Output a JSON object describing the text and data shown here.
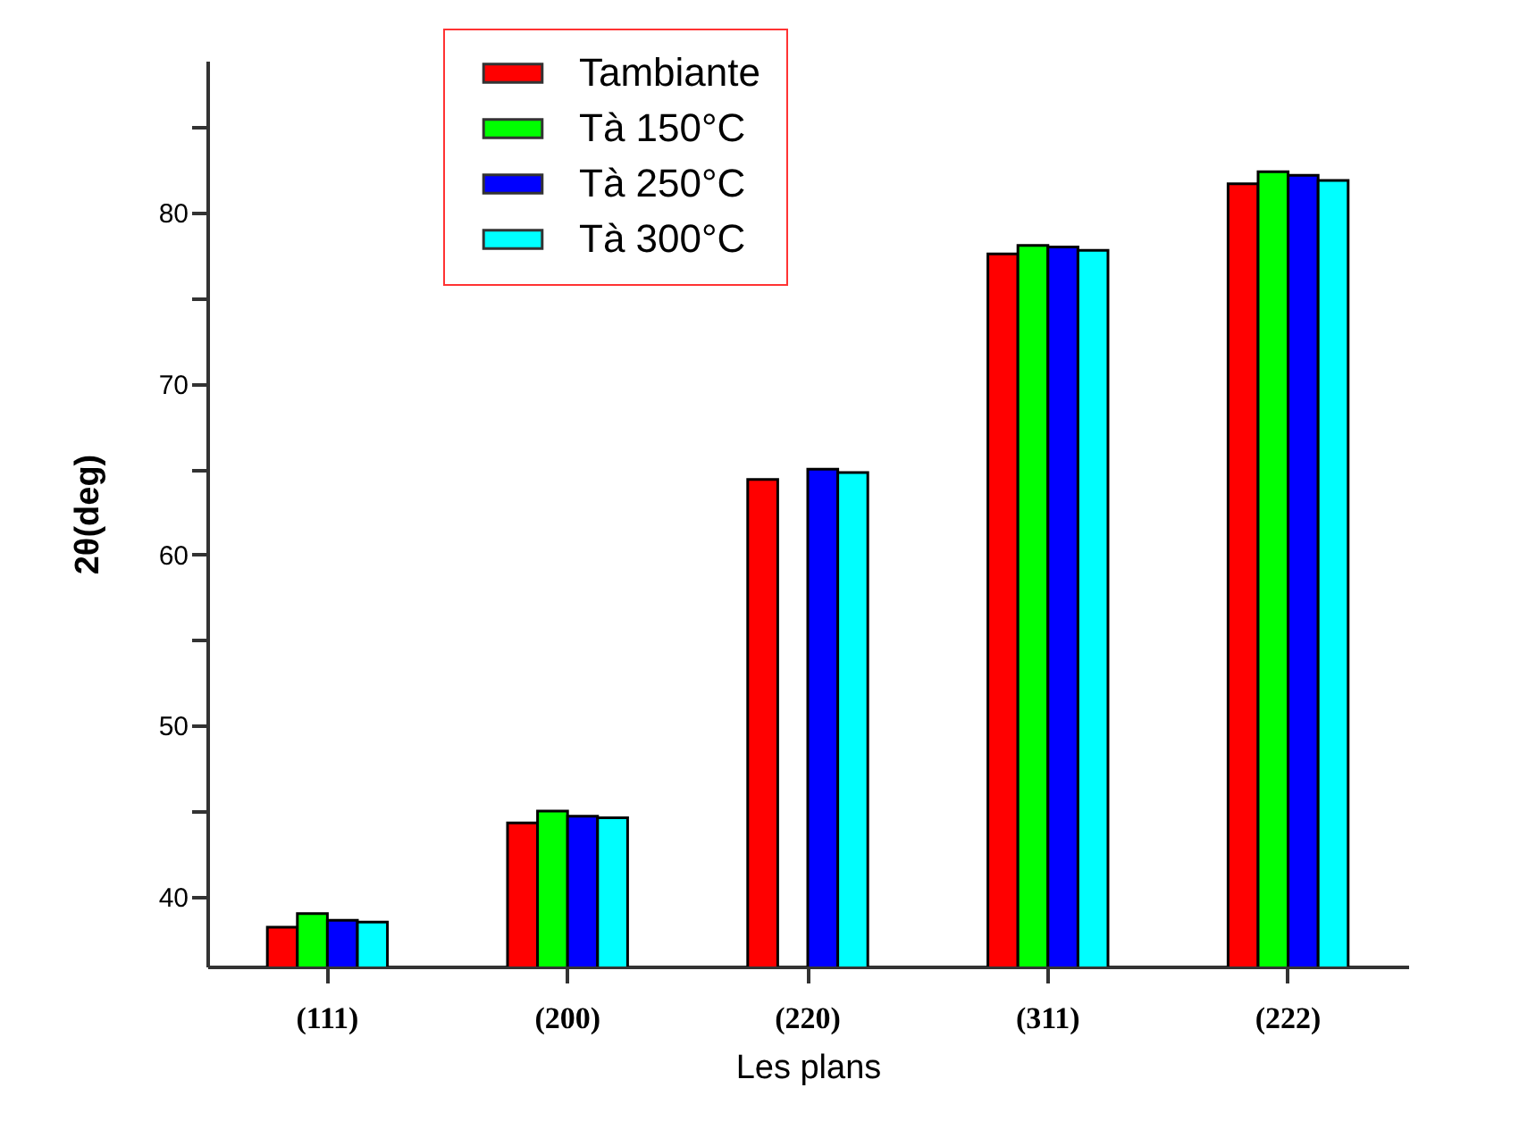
{
  "chart_data": {
    "type": "bar",
    "xlabel": "Les plans",
    "ylabel": "2θ(deg)",
    "categories": [
      "(111)",
      "(200)",
      "(220)",
      "(311)",
      "(222)"
    ],
    "series": [
      {
        "name": "Tambiante",
        "color": "#ff0000",
        "values": [
          38.2,
          44.3,
          64.4,
          77.6,
          81.7
        ]
      },
      {
        "name": "Tà 150°C",
        "color": "#00ff00",
        "values": [
          39.0,
          45.0,
          null,
          78.1,
          82.4
        ]
      },
      {
        "name": "Tà 250°C",
        "color": "#0000ff",
        "values": [
          38.6,
          44.7,
          65.0,
          78.0,
          82.2
        ]
      },
      {
        "name": "Tà 300°C",
        "color": "#00ffff",
        "values": [
          38.5,
          44.6,
          64.8,
          77.8,
          81.9
        ]
      }
    ],
    "ylim": [
      35.9,
      88.9
    ],
    "yticks": [
      40,
      {
        "value": 45,
        "label": null
      },
      50,
      {
        "value": 55,
        "label": null
      },
      60,
      {
        "value": 65,
        "label": null
      },
      70,
      {
        "value": 75,
        "label": null
      },
      80,
      {
        "value": 85,
        "label": null
      }
    ],
    "grid": false,
    "legend": "top"
  }
}
